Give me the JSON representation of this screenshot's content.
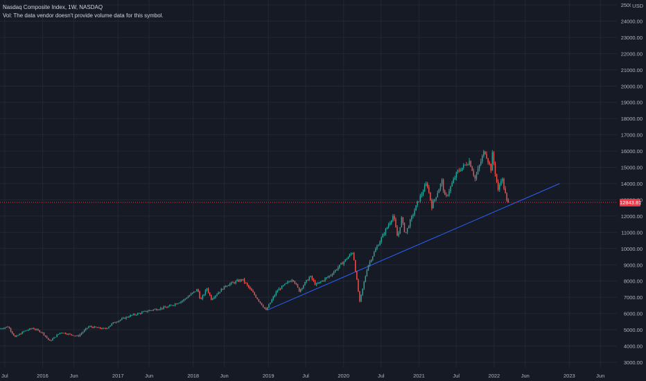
{
  "legend": {
    "symbol_line": "Nasdaq Composite Index, 1W, NASDAQ",
    "volume_line": "Vol: The data vendor doesn't provide volume data for this symbol."
  },
  "price_axis": {
    "currency": "USD",
    "current_price": "12843.81",
    "current_price_color": "#f23645"
  },
  "colors": {
    "background": "#161a25",
    "grid": "#232734",
    "up": "#26a69a",
    "down": "#ef5350",
    "trendline": "#2962ff",
    "axis_text": "#b2b5be"
  },
  "chart_data": {
    "type": "candlestick",
    "title": "Nasdaq Composite Index, 1W, NASDAQ",
    "x_ticks": [
      "Jul",
      "2016",
      "Jun",
      "2017",
      "Jun",
      "2018",
      "Jun",
      "2019",
      "Jul",
      "2020",
      "Jul",
      "2021",
      "Jul",
      "2022",
      "Jun",
      "2023",
      "Jun"
    ],
    "x_tick_dates": [
      "2015-07-01",
      "2016-01-01",
      "2016-06-01",
      "2017-01-01",
      "2017-06-01",
      "2018-01-01",
      "2018-06-01",
      "2019-01-01",
      "2019-07-01",
      "2020-01-01",
      "2020-07-01",
      "2021-01-01",
      "2021-07-01",
      "2022-01-01",
      "2022-06-01",
      "2023-01-01",
      "2023-06-01"
    ],
    "y_ticks": [
      3000,
      4000,
      5000,
      6000,
      7000,
      8000,
      9000,
      10000,
      11000,
      12000,
      13000,
      14000,
      15000,
      16000,
      17000,
      18000,
      19000,
      20000,
      21000,
      22000,
      23000,
      24000,
      25000
    ],
    "ylim": [
      2700,
      25300
    ],
    "xlim": [
      "2015-06-08",
      "2023-08-20"
    ],
    "grid": true,
    "price_trajectory": [
      [
        "2015-06-08",
        5050
      ],
      [
        "2015-07-20",
        5200
      ],
      [
        "2015-08-24",
        4550
      ],
      [
        "2015-10-05",
        4900
      ],
      [
        "2015-11-16",
        5100
      ],
      [
        "2016-01-01",
        4850
      ],
      [
        "2016-02-08",
        4300
      ],
      [
        "2016-04-01",
        4850
      ],
      [
        "2016-06-24",
        4600
      ],
      [
        "2016-08-15",
        5200
      ],
      [
        "2016-11-04",
        5050
      ],
      [
        "2016-12-15",
        5450
      ],
      [
        "2017-03-01",
        5850
      ],
      [
        "2017-06-09",
        6200
      ],
      [
        "2017-09-01",
        6400
      ],
      [
        "2017-11-15",
        6800
      ],
      [
        "2018-01-26",
        7500
      ],
      [
        "2018-02-09",
        6800
      ],
      [
        "2018-03-12",
        7550
      ],
      [
        "2018-04-02",
        6900
      ],
      [
        "2018-06-15",
        7750
      ],
      [
        "2018-08-31",
        8100
      ],
      [
        "2018-10-26",
        7200
      ],
      [
        "2018-12-24",
        6200
      ],
      [
        "2019-02-15",
        7400
      ],
      [
        "2019-05-03",
        8150
      ],
      [
        "2019-06-03",
        7400
      ],
      [
        "2019-07-26",
        8300
      ],
      [
        "2019-08-23",
        7750
      ],
      [
        "2019-11-01",
        8350
      ],
      [
        "2020-01-17",
        9350
      ],
      [
        "2020-02-19",
        9800
      ],
      [
        "2020-03-23",
        6700
      ],
      [
        "2020-04-30",
        8900
      ],
      [
        "2020-06-10",
        10000
      ],
      [
        "2020-09-02",
        12050
      ],
      [
        "2020-09-23",
        10650
      ],
      [
        "2020-10-12",
        11850
      ],
      [
        "2020-10-30",
        10900
      ],
      [
        "2020-12-31",
        12900
      ],
      [
        "2021-02-12",
        14050
      ],
      [
        "2021-03-08",
        12600
      ],
      [
        "2021-04-26",
        14150
      ],
      [
        "2021-05-12",
        13050
      ],
      [
        "2021-07-09",
        14700
      ],
      [
        "2021-09-07",
        15400
      ],
      [
        "2021-10-04",
        14300
      ],
      [
        "2021-11-19",
        16050
      ],
      [
        "2021-12-20",
        14900
      ],
      [
        "2021-12-27",
        15800
      ],
      [
        "2022-01-24",
        13550
      ],
      [
        "2022-02-10",
        14450
      ],
      [
        "2022-03-08",
        12843.81
      ]
    ],
    "last_close": 12843.81,
    "trendline": {
      "from": [
        "2018-12-24",
        6200
      ],
      "to": [
        "2022-11-15",
        14000
      ]
    }
  }
}
